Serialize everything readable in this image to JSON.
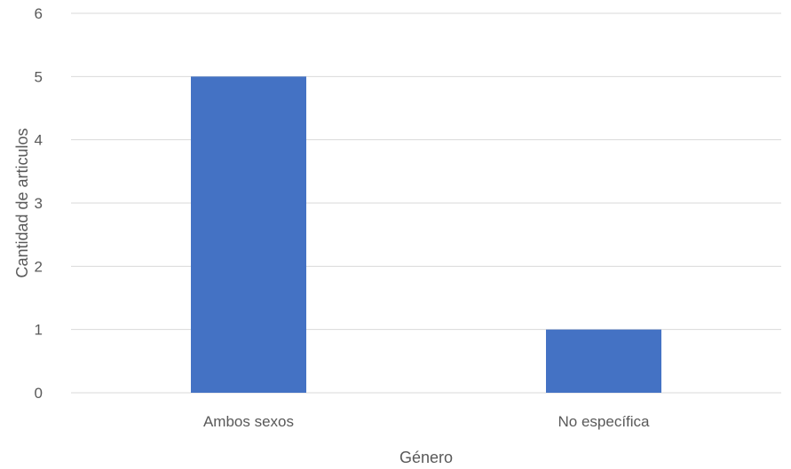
{
  "chart_data": {
    "type": "bar",
    "categories": [
      "Ambos sexos",
      "No específica"
    ],
    "values": [
      5,
      1
    ],
    "xlabel": "Género",
    "ylabel": "Cantidad de articulos",
    "ylim": [
      0,
      6
    ],
    "yticks": [
      0,
      1,
      2,
      3,
      4,
      5,
      6
    ],
    "grid": true,
    "legend": "none",
    "colors": {
      "bar": "#4472c4",
      "grid": "#d9d9d9",
      "text": "#595959"
    }
  }
}
